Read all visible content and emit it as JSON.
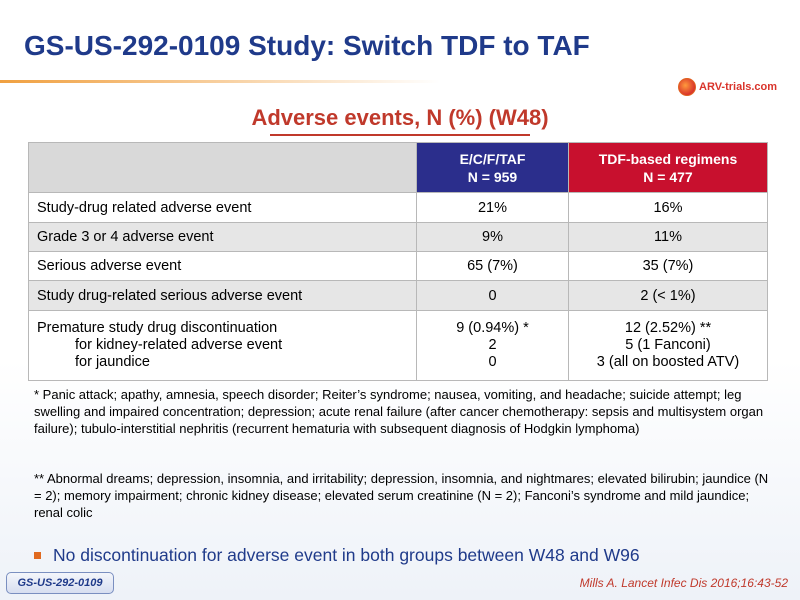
{
  "title": "GS-US-292-0109 Study: Switch TDF to TAF",
  "logo": {
    "text": "ARV-trials.com",
    "icon": "arv-trials-logo-icon"
  },
  "subtitle": "Adverse events, N (%) (W48)",
  "table": {
    "col1": {
      "line1": "E/C/F/TAF",
      "line2": "N = 959"
    },
    "col2": {
      "line1": "TDF-based  regimens",
      "line2": "N = 477"
    },
    "rows": [
      {
        "label": "Study-drug  related adverse event",
        "v1": "21%",
        "v2": "16%"
      },
      {
        "label": "Grade 3 or 4 adverse event",
        "v1": "9%",
        "v2": "11%"
      },
      {
        "label": "Serious adverse event",
        "v1": "65 (7%)",
        "v2": "35 (7%)"
      },
      {
        "label": "Study drug-related  serious  adverse event",
        "v1": "0",
        "v2": "2 (< 1%)"
      }
    ],
    "discontinuation": {
      "label": "Premature study drug discontinuation",
      "sub1": "for kidney-related  adverse event",
      "sub2": "for jaundice",
      "v1": "9 (0.94%) *",
      "v1_sub1": "2",
      "v1_sub2": "0",
      "v2": "12 (2.52%) **",
      "v2_sub1": "5 (1 Fanconi)",
      "v2_sub2": "3 (all on boosted ATV)"
    }
  },
  "footnote1": "* Panic attack; apathy, amnesia, speech disorder; Reiter’s syndrome; nausea, vomiting, and headache; suicide attempt; leg swelling and impaired concentration; depression; acute renal failure (after cancer chemotherapy: sepsis and multisystem organ failure); tubulo-interstitial nephritis (recurrent hematuria with subsequent diagnosis of Hodgkin lymphoma)",
  "footnote2": "** Abnormal dreams; depression, insomnia, and irritability;  depression, insomnia, and nightmares; elevated bilirubin; jaundice (N = 2); memory impairment; chronic kidney disease; elevated serum creatinine (N = 2); Fanconi’s syndrome and mild jaundice; renal colic",
  "bullet": "No discontinuation for adverse event in both groups between W48 and W96",
  "badge": "GS-US-292-0109",
  "citation": "Mills A. Lancet Infec Dis 2016;16:43-52",
  "colors": {
    "title": "#1f3a8a",
    "subtitle": "#c0392b",
    "taf_header": "#2b2e8c",
    "tdf_header": "#c8102e",
    "bullet": "#e06a20"
  }
}
